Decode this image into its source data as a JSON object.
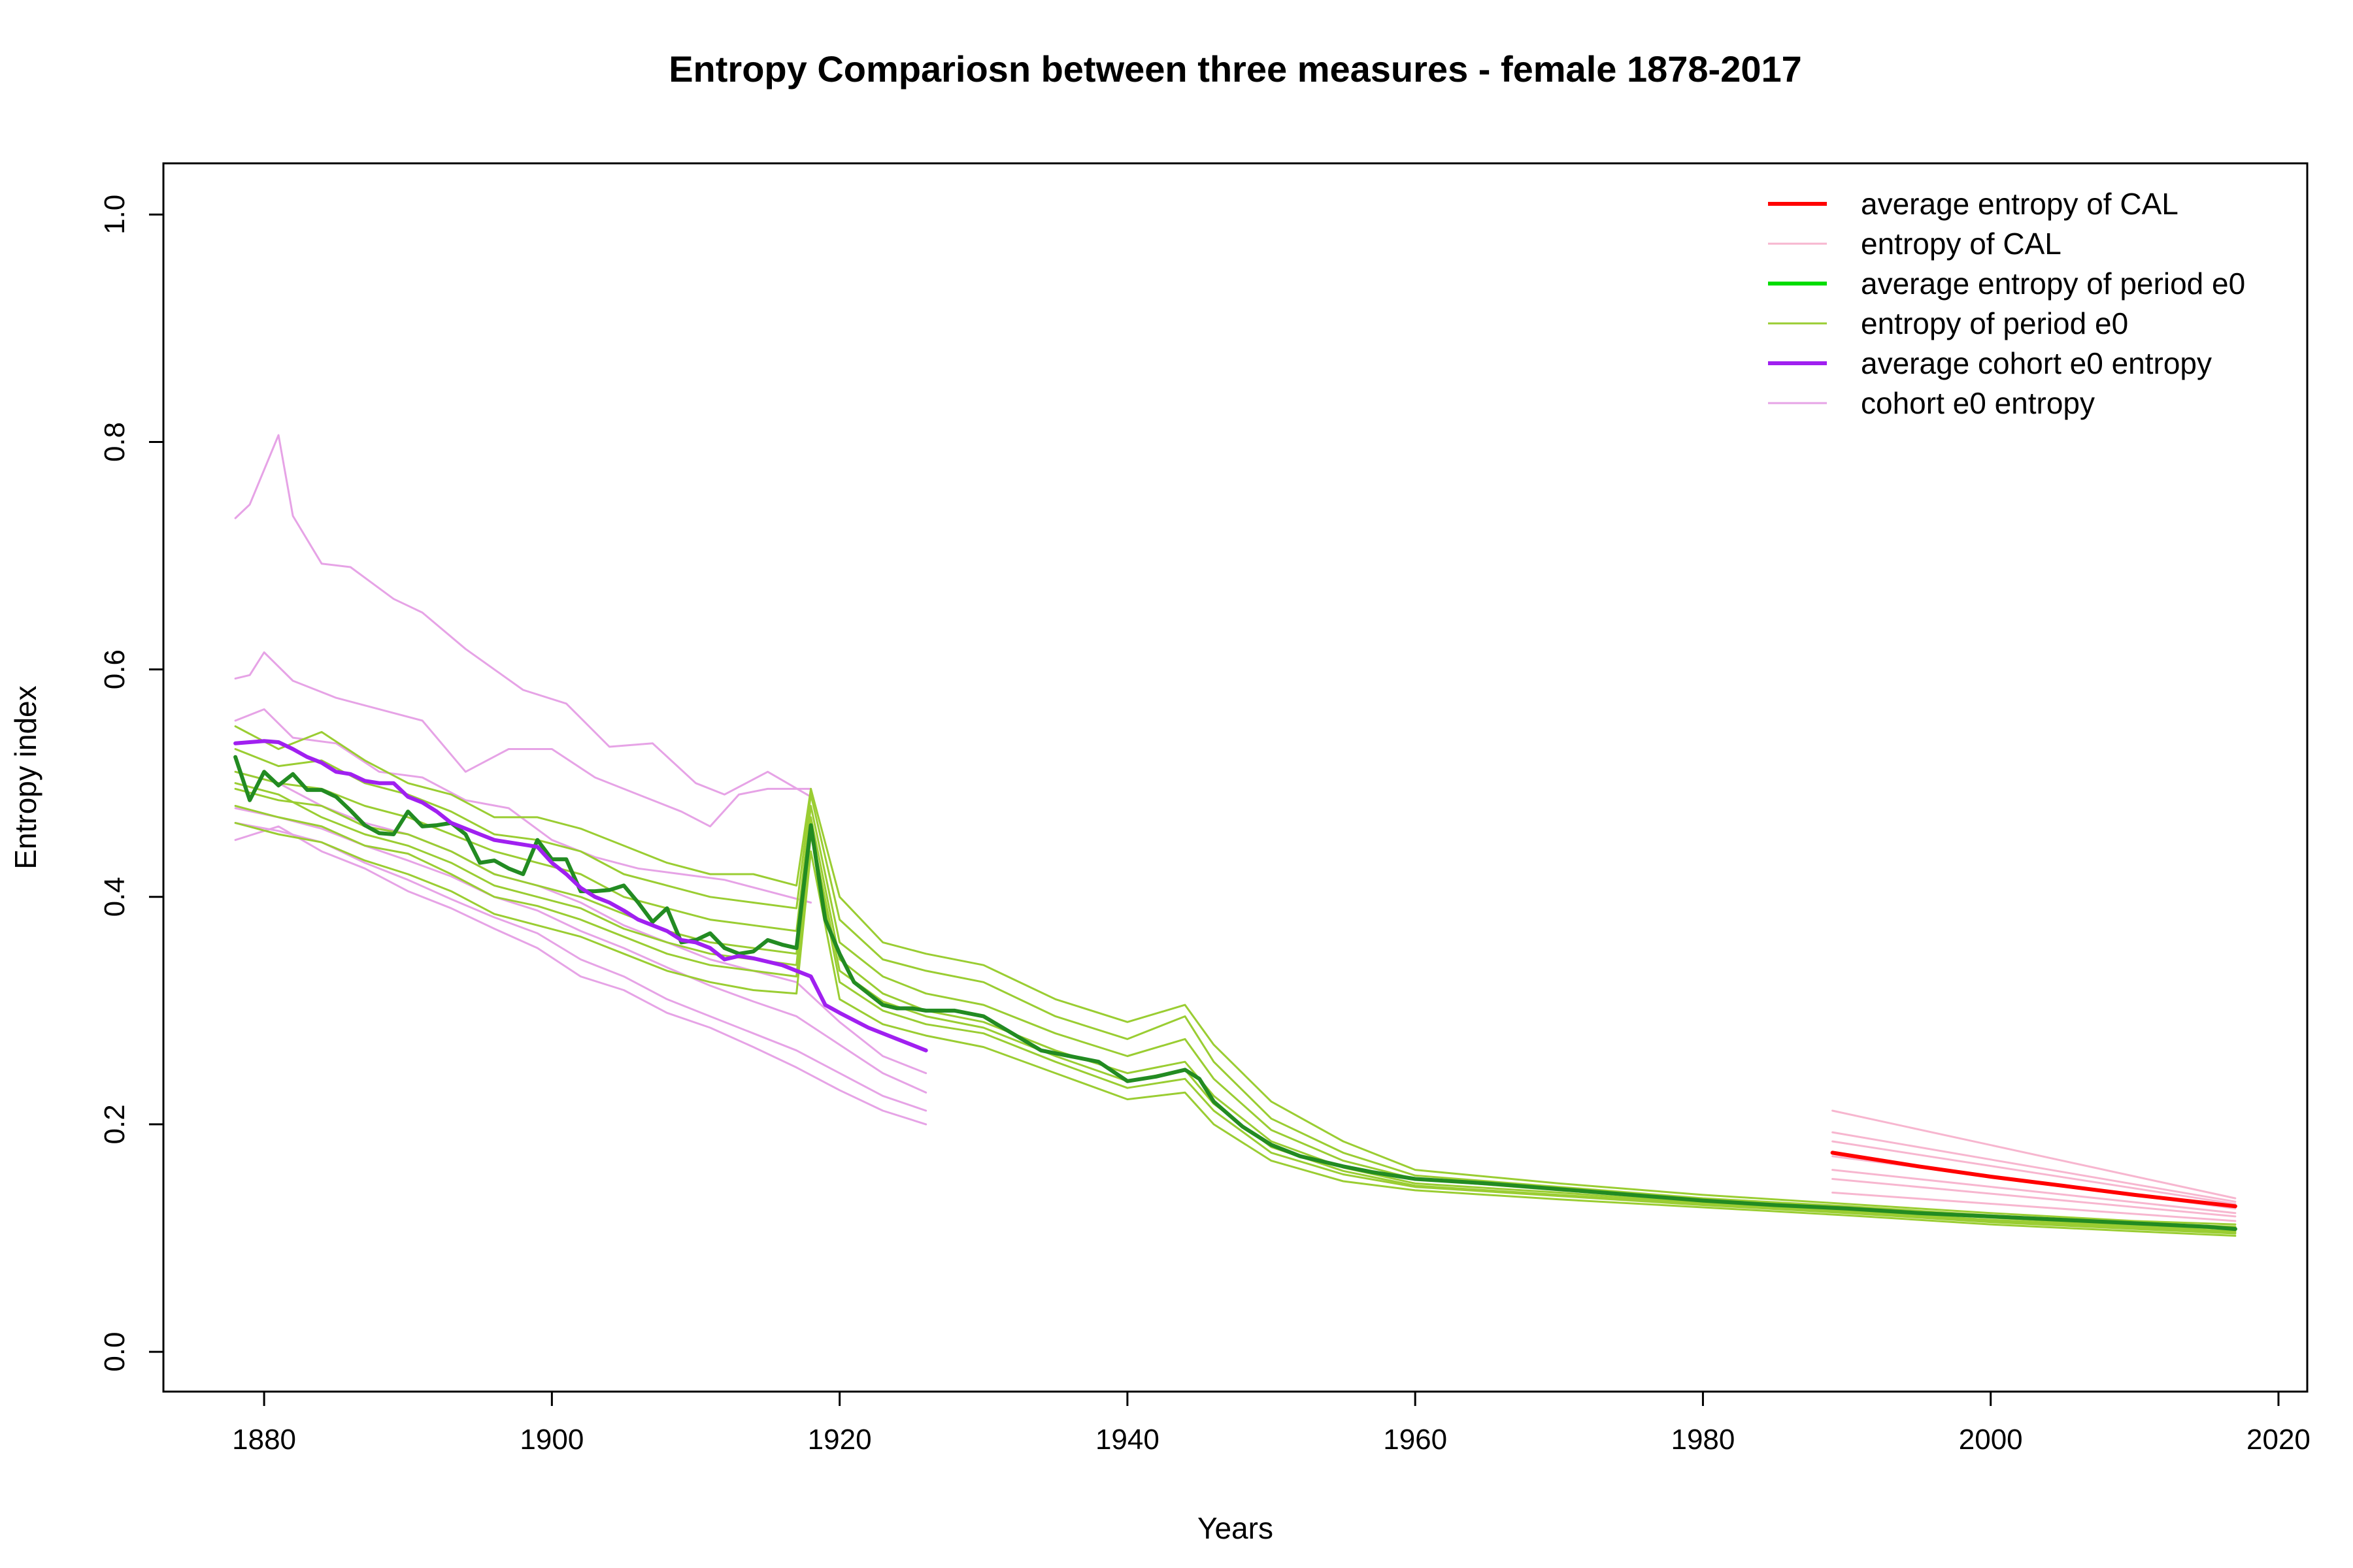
{
  "chart_data": {
    "type": "line",
    "title": "Entropy Compariosn between three measures - female 1878-2017",
    "xlabel": "Years",
    "ylabel": "Entropy index",
    "xlim": [
      1873,
      2022
    ],
    "ylim": [
      -0.035,
      1.045
    ],
    "xticks": [
      1880,
      1900,
      1920,
      1940,
      1960,
      1980,
      2000,
      2020
    ],
    "xtick_labels": [
      "1880",
      "1900",
      "1920",
      "1940",
      "1960",
      "1980",
      "2000",
      "2020"
    ],
    "yticks": [
      0.0,
      0.2,
      0.4,
      0.6,
      0.8,
      1.0
    ],
    "ytick_labels": [
      "0.0",
      "0.2",
      "0.4",
      "0.6",
      "0.8",
      "1.0"
    ],
    "grid": false,
    "legend_position": "top-right",
    "colors": {
      "avg_cal": "#ff0000",
      "cal": "#f7b6cf",
      "avg_period": "#228b22",
      "avg_period_legend": "#00dd00",
      "period": "#9acd32",
      "avg_cohort": "#a020f0",
      "cohort": "#e6a3e6"
    },
    "legend": [
      {
        "label": "average entropy of CAL",
        "color": "#ff0000",
        "width": 6
      },
      {
        "label": "entropy of CAL",
        "color": "#f7b6cf",
        "width": 3
      },
      {
        "label": "average entropy of period e0",
        "color": "#00dd00",
        "width": 6
      },
      {
        "label": "entropy of period e0",
        "color": "#9acd32",
        "width": 3
      },
      {
        "label": "average cohort e0 entropy",
        "color": "#a020f0",
        "width": 6
      },
      {
        "label": "cohort e0 entropy",
        "color": "#e6a3e6",
        "width": 3
      }
    ],
    "series": [
      {
        "group": "cohort",
        "x": [
          1878,
          1879,
          1881,
          1882,
          1884,
          1886,
          1889,
          1891,
          1894,
          1898,
          1901,
          1904,
          1907,
          1910,
          1912,
          1915,
          1918
        ],
        "y": [
          0.733,
          0.745,
          0.806,
          0.735,
          0.693,
          0.69,
          0.662,
          0.65,
          0.618,
          0.582,
          0.57,
          0.532,
          0.535,
          0.5,
          0.49,
          0.51,
          0.488
        ]
      },
      {
        "group": "cohort",
        "x": [
          1878,
          1879,
          1880,
          1882,
          1885,
          1888,
          1891,
          1894,
          1897,
          1900,
          1903,
          1906,
          1909,
          1911,
          1913,
          1915,
          1918
        ],
        "y": [
          0.592,
          0.595,
          0.615,
          0.59,
          0.575,
          0.565,
          0.555,
          0.51,
          0.53,
          0.53,
          0.505,
          0.49,
          0.475,
          0.462,
          0.49,
          0.495,
          0.495
        ]
      },
      {
        "group": "cohort",
        "x": [
          1878,
          1880,
          1882,
          1885,
          1888,
          1891,
          1894,
          1897,
          1900,
          1903,
          1906,
          1909,
          1912,
          1915,
          1918
        ],
        "y": [
          0.555,
          0.565,
          0.54,
          0.535,
          0.51,
          0.505,
          0.485,
          0.478,
          0.45,
          0.435,
          0.425,
          0.42,
          0.415,
          0.405,
          0.395
        ]
      },
      {
        "group": "cohort",
        "x": [
          1878,
          1881,
          1884,
          1887,
          1890,
          1893,
          1896,
          1899,
          1902,
          1905,
          1908,
          1911,
          1914,
          1917,
          1920,
          1923,
          1926
        ],
        "y": [
          0.51,
          0.5,
          0.48,
          0.465,
          0.455,
          0.44,
          0.42,
          0.41,
          0.395,
          0.375,
          0.36,
          0.345,
          0.335,
          0.325,
          0.29,
          0.26,
          0.245
        ]
      },
      {
        "group": "cohort",
        "x": [
          1878,
          1881,
          1884,
          1887,
          1890,
          1893,
          1896,
          1899,
          1902,
          1905,
          1908,
          1911,
          1914,
          1917,
          1920,
          1923,
          1926
        ],
        "y": [
          0.478,
          0.47,
          0.46,
          0.445,
          0.432,
          0.418,
          0.4,
          0.388,
          0.37,
          0.355,
          0.338,
          0.322,
          0.308,
          0.295,
          0.27,
          0.245,
          0.228
        ]
      },
      {
        "group": "cohort",
        "x": [
          1878,
          1881,
          1884,
          1887,
          1890,
          1893,
          1896,
          1899,
          1902,
          1905,
          1908,
          1911,
          1914,
          1917,
          1920,
          1923,
          1926
        ],
        "y": [
          0.465,
          0.458,
          0.448,
          0.43,
          0.415,
          0.398,
          0.382,
          0.368,
          0.345,
          0.33,
          0.31,
          0.295,
          0.28,
          0.265,
          0.245,
          0.225,
          0.212
        ]
      },
      {
        "group": "cohort",
        "x": [
          1878,
          1881,
          1884,
          1887,
          1890,
          1893,
          1896,
          1899,
          1902,
          1905,
          1908,
          1911,
          1914,
          1917,
          1920,
          1923,
          1926
        ],
        "y": [
          0.45,
          0.462,
          0.44,
          0.425,
          0.405,
          0.39,
          0.372,
          0.355,
          0.33,
          0.318,
          0.298,
          0.285,
          0.268,
          0.25,
          0.23,
          0.212,
          0.2
        ]
      },
      {
        "group": "period",
        "x": [
          1878,
          1881,
          1884,
          1887,
          1890,
          1893,
          1896,
          1899,
          1902,
          1905,
          1908,
          1911,
          1914,
          1917,
          1918,
          1920,
          1923,
          1926,
          1930,
          1935,
          1940,
          1944,
          1946,
          1950,
          1955,
          1960,
          1970,
          1980,
          1990,
          2000,
          2010,
          2017
        ],
        "y": [
          0.55,
          0.53,
          0.545,
          0.52,
          0.5,
          0.49,
          0.47,
          0.47,
          0.46,
          0.445,
          0.43,
          0.42,
          0.42,
          0.41,
          0.495,
          0.4,
          0.36,
          0.35,
          0.34,
          0.31,
          0.29,
          0.305,
          0.27,
          0.22,
          0.185,
          0.16,
          0.148,
          0.138,
          0.13,
          0.122,
          0.115,
          0.112
        ]
      },
      {
        "group": "period",
        "x": [
          1878,
          1881,
          1884,
          1887,
          1890,
          1893,
          1896,
          1899,
          1902,
          1905,
          1908,
          1911,
          1914,
          1917,
          1918,
          1920,
          1923,
          1926,
          1930,
          1935,
          1940,
          1944,
          1946,
          1950,
          1955,
          1960,
          1970,
          1980,
          1990,
          2000,
          2010,
          2017
        ],
        "y": [
          0.53,
          0.515,
          0.52,
          0.5,
          0.49,
          0.475,
          0.455,
          0.45,
          0.44,
          0.42,
          0.41,
          0.4,
          0.395,
          0.39,
          0.49,
          0.38,
          0.345,
          0.335,
          0.325,
          0.295,
          0.275,
          0.295,
          0.255,
          0.205,
          0.175,
          0.155,
          0.145,
          0.135,
          0.128,
          0.12,
          0.113,
          0.11
        ]
      },
      {
        "group": "period",
        "x": [
          1878,
          1881,
          1884,
          1887,
          1890,
          1893,
          1896,
          1899,
          1902,
          1905,
          1908,
          1911,
          1914,
          1917,
          1918,
          1920,
          1923,
          1926,
          1930,
          1935,
          1940,
          1944,
          1946,
          1950,
          1955,
          1960,
          1970,
          1980,
          1990,
          2000,
          2010,
          2017
        ],
        "y": [
          0.51,
          0.5,
          0.495,
          0.48,
          0.47,
          0.455,
          0.44,
          0.43,
          0.42,
          0.4,
          0.39,
          0.38,
          0.375,
          0.37,
          0.48,
          0.36,
          0.33,
          0.315,
          0.305,
          0.28,
          0.26,
          0.275,
          0.24,
          0.195,
          0.168,
          0.152,
          0.142,
          0.133,
          0.126,
          0.118,
          0.111,
          0.108
        ]
      },
      {
        "group": "period",
        "x": [
          1878,
          1881,
          1884,
          1887,
          1890,
          1893,
          1896,
          1899,
          1902,
          1905,
          1908,
          1911,
          1914,
          1917,
          1918,
          1920,
          1923,
          1926,
          1930,
          1935,
          1940,
          1944,
          1946,
          1950,
          1955,
          1960,
          1970,
          1980,
          1990,
          2000,
          2010,
          2017
        ],
        "y": [
          0.495,
          0.485,
          0.48,
          0.462,
          0.455,
          0.44,
          0.42,
          0.41,
          0.4,
          0.385,
          0.37,
          0.36,
          0.355,
          0.35,
          0.47,
          0.345,
          0.315,
          0.3,
          0.29,
          0.265,
          0.245,
          0.255,
          0.225,
          0.185,
          0.162,
          0.148,
          0.14,
          0.131,
          0.124,
          0.116,
          0.11,
          0.106
        ]
      },
      {
        "group": "period",
        "x": [
          1878,
          1881,
          1884,
          1887,
          1890,
          1893,
          1896,
          1899,
          1902,
          1905,
          1908,
          1911,
          1914,
          1917,
          1918,
          1920,
          1923,
          1926,
          1930,
          1935,
          1940,
          1944,
          1946,
          1950,
          1955,
          1960,
          1970,
          1980,
          1990,
          2000,
          2010,
          2017
        ],
        "y": [
          0.48,
          0.47,
          0.462,
          0.445,
          0.438,
          0.42,
          0.4,
          0.392,
          0.38,
          0.365,
          0.35,
          0.34,
          0.335,
          0.33,
          0.455,
          0.325,
          0.3,
          0.288,
          0.28,
          0.255,
          0.232,
          0.24,
          0.212,
          0.175,
          0.156,
          0.145,
          0.137,
          0.129,
          0.122,
          0.114,
          0.108,
          0.104
        ]
      },
      {
        "group": "period",
        "x": [
          1878,
          1881,
          1884,
          1887,
          1890,
          1893,
          1896,
          1899,
          1902,
          1905,
          1908,
          1911,
          1914,
          1917,
          1918,
          1920,
          1923,
          1926,
          1930,
          1935,
          1940,
          1944,
          1946,
          1950,
          1955,
          1960,
          1970,
          1980,
          1990,
          2000,
          2010,
          2017
        ],
        "y": [
          0.465,
          0.455,
          0.448,
          0.432,
          0.42,
          0.405,
          0.385,
          0.375,
          0.365,
          0.35,
          0.335,
          0.325,
          0.318,
          0.315,
          0.44,
          0.31,
          0.288,
          0.278,
          0.268,
          0.245,
          0.222,
          0.228,
          0.2,
          0.168,
          0.15,
          0.142,
          0.134,
          0.127,
          0.12,
          0.112,
          0.106,
          0.102
        ]
      },
      {
        "group": "period",
        "x": [
          1878,
          1881,
          1884,
          1887,
          1890,
          1893,
          1896,
          1899,
          1902,
          1905,
          1908,
          1911,
          1914,
          1917,
          1918,
          1920,
          1923,
          1926,
          1930,
          1935,
          1940,
          1944,
          1946,
          1950,
          1955,
          1960,
          1970,
          1980,
          1990,
          2000,
          2010,
          2017
        ],
        "y": [
          0.5,
          0.49,
          0.47,
          0.455,
          0.445,
          0.43,
          0.41,
          0.4,
          0.39,
          0.372,
          0.36,
          0.35,
          0.345,
          0.34,
          0.46,
          0.335,
          0.308,
          0.295,
          0.285,
          0.26,
          0.238,
          0.248,
          0.218,
          0.18,
          0.159,
          0.146,
          0.138,
          0.13,
          0.123,
          0.115,
          0.109,
          0.105
        ]
      },
      {
        "group": "cal",
        "x": [
          1989,
          2017
        ],
        "y": [
          0.212,
          0.135
        ]
      },
      {
        "group": "cal",
        "x": [
          1989,
          2017
        ],
        "y": [
          0.193,
          0.132
        ]
      },
      {
        "group": "cal",
        "x": [
          1989,
          2017
        ],
        "y": [
          0.185,
          0.13
        ]
      },
      {
        "group": "cal",
        "x": [
          1989,
          2017
        ],
        "y": [
          0.172,
          0.126
        ]
      },
      {
        "group": "cal",
        "x": [
          1989,
          2017
        ],
        "y": [
          0.16,
          0.122
        ]
      },
      {
        "group": "cal",
        "x": [
          1989,
          2017
        ],
        "y": [
          0.152,
          0.119
        ]
      },
      {
        "group": "cal",
        "x": [
          1989,
          2017
        ],
        "y": [
          0.14,
          0.115
        ]
      },
      {
        "group": "avg_period",
        "x": [
          1878,
          1879,
          1880,
          1881,
          1882,
          1883,
          1884,
          1885,
          1886,
          1887,
          1888,
          1889,
          1890,
          1891,
          1892,
          1893,
          1894,
          1895,
          1896,
          1897,
          1898,
          1899,
          1900,
          1901,
          1902,
          1903,
          1904,
          1905,
          1906,
          1907,
          1908,
          1909,
          1910,
          1911,
          1912,
          1913,
          1914,
          1915,
          1916,
          1917,
          1918,
          1919,
          1920,
          1921,
          1922,
          1923,
          1924,
          1925,
          1926,
          1928,
          1930,
          1932,
          1934,
          1936,
          1938,
          1940,
          1942,
          1944,
          1945,
          1946,
          1948,
          1950,
          1952,
          1955,
          1957,
          1960,
          1965,
          1970,
          1975,
          1980,
          1985,
          1990,
          1995,
          2000,
          2005,
          2010,
          2015,
          2017
        ],
        "y": [
          0.523,
          0.485,
          0.51,
          0.498,
          0.508,
          0.494,
          0.494,
          0.488,
          0.476,
          0.463,
          0.456,
          0.455,
          0.475,
          0.462,
          0.463,
          0.465,
          0.455,
          0.43,
          0.432,
          0.425,
          0.42,
          0.45,
          0.433,
          0.433,
          0.405,
          0.405,
          0.406,
          0.41,
          0.395,
          0.378,
          0.39,
          0.36,
          0.362,
          0.368,
          0.355,
          0.35,
          0.352,
          0.362,
          0.358,
          0.355,
          0.463,
          0.38,
          0.35,
          0.325,
          0.315,
          0.305,
          0.302,
          0.302,
          0.3,
          0.3,
          0.295,
          0.28,
          0.265,
          0.26,
          0.255,
          0.238,
          0.242,
          0.248,
          0.24,
          0.22,
          0.198,
          0.182,
          0.172,
          0.163,
          0.158,
          0.152,
          0.148,
          0.143,
          0.138,
          0.133,
          0.129,
          0.126,
          0.122,
          0.119,
          0.116,
          0.113,
          0.11,
          0.108
        ]
      },
      {
        "group": "avg_cohort",
        "x": [
          1878,
          1879,
          1880,
          1881,
          1882,
          1883,
          1884,
          1885,
          1886,
          1887,
          1888,
          1889,
          1890,
          1891,
          1892,
          1893,
          1894,
          1895,
          1896,
          1897,
          1898,
          1899,
          1900,
          1901,
          1902,
          1903,
          1904,
          1905,
          1906,
          1907,
          1908,
          1909,
          1910,
          1911,
          1912,
          1913,
          1914,
          1915,
          1916,
          1917,
          1918,
          1919,
          1920,
          1922,
          1924,
          1926
        ],
        "y": [
          0.535,
          0.536,
          0.537,
          0.536,
          0.53,
          0.523,
          0.518,
          0.51,
          0.508,
          0.502,
          0.5,
          0.5,
          0.488,
          0.483,
          0.475,
          0.465,
          0.46,
          0.455,
          0.45,
          0.448,
          0.446,
          0.444,
          0.43,
          0.42,
          0.408,
          0.4,
          0.395,
          0.388,
          0.38,
          0.375,
          0.37,
          0.362,
          0.36,
          0.355,
          0.345,
          0.348,
          0.346,
          0.343,
          0.34,
          0.335,
          0.33,
          0.305,
          0.298,
          0.285,
          0.275,
          0.265
        ]
      },
      {
        "group": "avg_cal",
        "x": [
          1989,
          1995,
          2000,
          2005,
          2010,
          2017
        ],
        "y": [
          0.175,
          0.163,
          0.154,
          0.146,
          0.138,
          0.128
        ]
      }
    ]
  }
}
